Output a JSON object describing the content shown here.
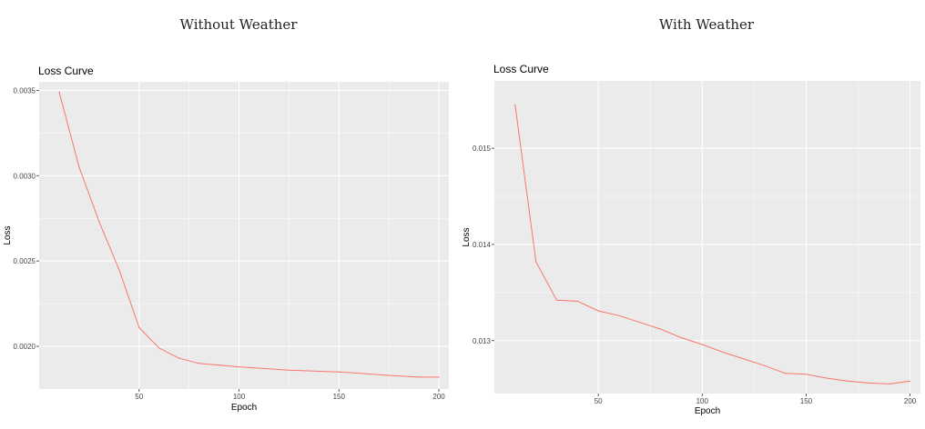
{
  "panels": {
    "left_heading": "Without Weather",
    "right_heading": "With Weather"
  },
  "colors": {
    "panel_bg": "#ebebeb",
    "grid": "#ffffff",
    "line": "#f8766d"
  },
  "chart_data": [
    {
      "type": "line",
      "title": "Loss Curve",
      "xlabel": "Epoch",
      "ylabel": "Loss",
      "xlim": [
        0,
        205
      ],
      "ylim": [
        0.00175,
        0.00355
      ],
      "xticks": [
        50,
        100,
        150,
        200
      ],
      "xtick_labels": [
        "50",
        "100",
        "150",
        "200"
      ],
      "yticks": [
        0.002,
        0.0025,
        0.003,
        0.0035
      ],
      "ytick_labels": [
        "0.0020",
        "0.0025",
        "0.0030",
        "0.0035"
      ],
      "grid": true,
      "x": [
        10,
        20,
        30,
        40,
        50,
        60,
        70,
        80,
        90,
        100,
        125,
        150,
        175,
        190,
        200
      ],
      "series": [
        {
          "values": [
            0.00349,
            0.00305,
            0.00273,
            0.00245,
            0.00211,
            0.00199,
            0.00193,
            0.0019,
            0.00189,
            0.00188,
            0.00186,
            0.00185,
            0.00183,
            0.00182,
            0.00182
          ]
        }
      ]
    },
    {
      "type": "line",
      "title": "Loss Curve",
      "xlabel": "Epoch",
      "ylabel": "Loss",
      "xlim": [
        0,
        205
      ],
      "ylim": [
        0.01245,
        0.0157
      ],
      "xticks": [
        50,
        100,
        150,
        200
      ],
      "xtick_labels": [
        "50",
        "100",
        "150",
        "200"
      ],
      "yticks": [
        0.013,
        0.014,
        0.015
      ],
      "ytick_labels": [
        "0.013",
        "0.014",
        "0.015"
      ],
      "grid": true,
      "x": [
        10,
        20,
        30,
        40,
        50,
        60,
        70,
        80,
        90,
        100,
        110,
        120,
        130,
        140,
        150,
        160,
        170,
        180,
        190,
        200
      ],
      "series": [
        {
          "values": [
            0.01545,
            0.01382,
            0.01342,
            0.01341,
            0.01331,
            0.01326,
            0.01319,
            0.01312,
            0.01303,
            0.01296,
            0.01288,
            0.01281,
            0.01274,
            0.01266,
            0.01265,
            0.01261,
            0.01258,
            0.01256,
            0.01255,
            0.01258
          ]
        }
      ]
    }
  ]
}
